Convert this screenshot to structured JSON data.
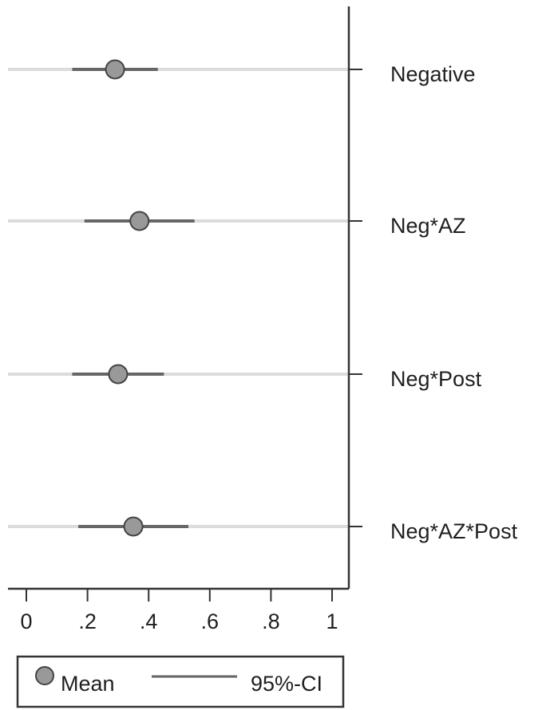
{
  "chart_data": {
    "type": "scatter",
    "orientation": "horizontal",
    "categories": [
      "Negative",
      "Neg*AZ",
      "Neg*Post",
      "Neg*AZ*Post"
    ],
    "series": [
      {
        "name": "Mean",
        "values": [
          0.29,
          0.37,
          0.3,
          0.35
        ],
        "ci_low": [
          0.15,
          0.19,
          0.15,
          0.17
        ],
        "ci_high": [
          0.43,
          0.55,
          0.45,
          0.53
        ]
      }
    ],
    "x_ticks": [
      0,
      0.2,
      0.4,
      0.6,
      0.8,
      1
    ],
    "x_tick_labels": [
      "0",
      ".2",
      ".4",
      ".6",
      ".8",
      "1"
    ],
    "xlim": [
      -0.07,
      1.05
    ],
    "grid": false,
    "legend": {
      "position": "bottom-left",
      "items": [
        "Mean",
        "95%-CI"
      ]
    },
    "colors": {
      "marker_fill": "#999999",
      "marker_stroke": "#444444",
      "ci_line": "#666666",
      "reference_line": "#dcdcdc",
      "axis": "#333333"
    }
  }
}
